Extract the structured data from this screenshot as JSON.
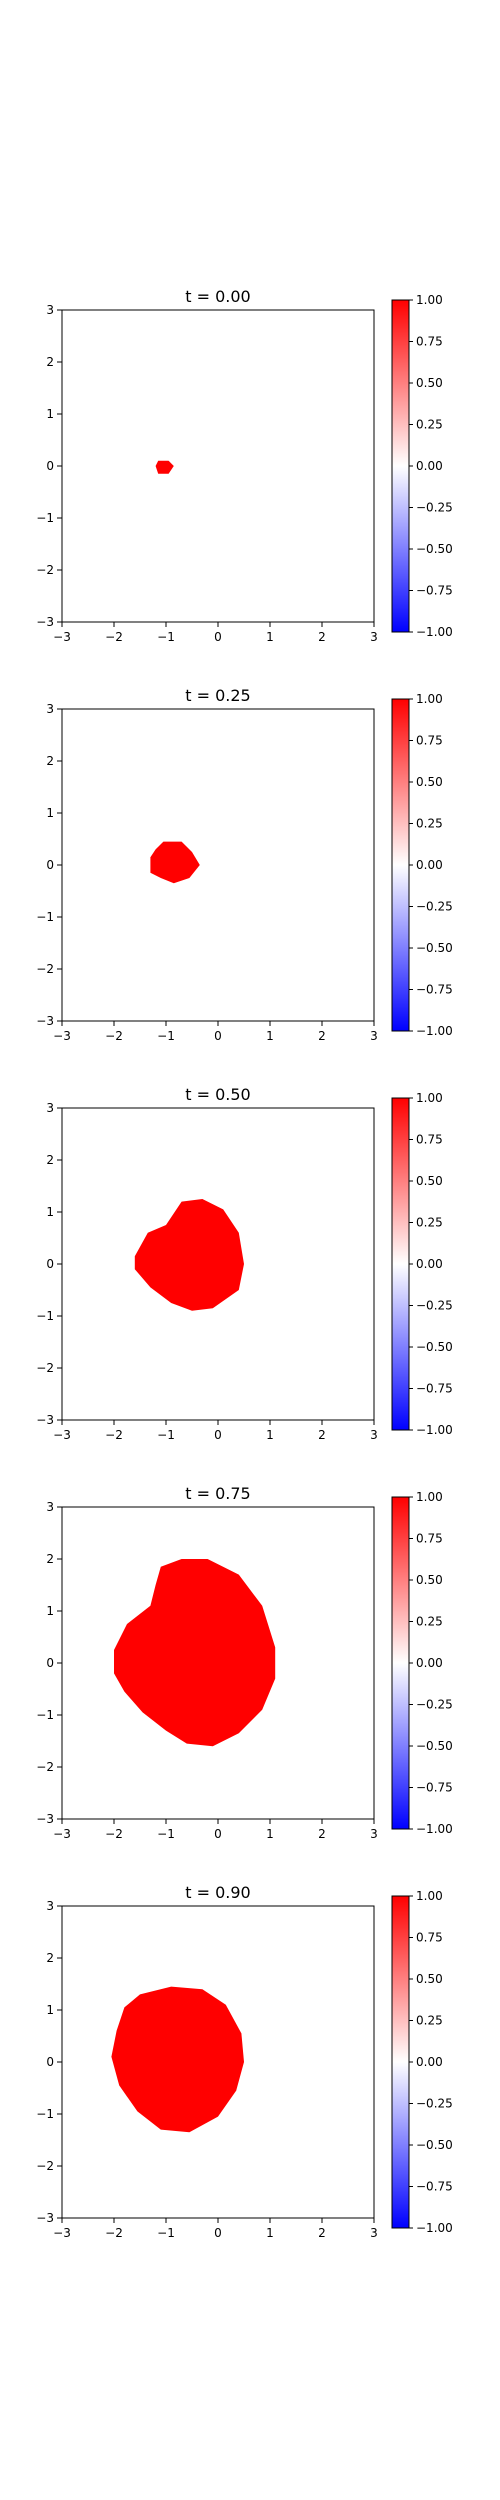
{
  "colors": {
    "fill": "#ff0000",
    "negative": "#0000ff",
    "zero": "#ffffff",
    "axis": "#000000"
  },
  "chart_data": [
    {
      "type": "heatmap",
      "title": "t = 0.00",
      "xlim": [
        -3,
        3
      ],
      "ylim": [
        -3,
        3
      ],
      "xticks": [
        -3,
        -2,
        -1,
        0,
        1,
        2,
        3
      ],
      "yticks": [
        -3,
        -2,
        -1,
        0,
        1,
        2,
        3
      ],
      "colorbar": {
        "vmin": -1.0,
        "vmax": 1.0,
        "ticks": [
          "1.00",
          "0.75",
          "0.50",
          "0.25",
          "0.00",
          "−0.25",
          "−0.50",
          "−0.75",
          "−1.00"
        ]
      },
      "region": {
        "value": 1.0,
        "outline": [
          [
            -1.15,
            0.1
          ],
          [
            -0.95,
            0.1
          ],
          [
            -0.85,
            0.0
          ],
          [
            -0.95,
            -0.15
          ],
          [
            -1.15,
            -0.15
          ],
          [
            -1.2,
            0.0
          ]
        ]
      }
    },
    {
      "type": "heatmap",
      "title": "t = 0.25",
      "xlim": [
        -3,
        3
      ],
      "ylim": [
        -3,
        3
      ],
      "xticks": [
        -3,
        -2,
        -1,
        0,
        1,
        2,
        3
      ],
      "yticks": [
        -3,
        -2,
        -1,
        0,
        1,
        2,
        3
      ],
      "colorbar": {
        "vmin": -1.0,
        "vmax": 1.0,
        "ticks": [
          "1.00",
          "0.75",
          "0.50",
          "0.25",
          "0.00",
          "−0.25",
          "−0.50",
          "−0.75",
          "−1.00"
        ]
      },
      "region": {
        "value": 1.0,
        "outline": [
          [
            -1.05,
            0.45
          ],
          [
            -0.7,
            0.45
          ],
          [
            -0.5,
            0.25
          ],
          [
            -0.35,
            0.0
          ],
          [
            -0.55,
            -0.25
          ],
          [
            -0.85,
            -0.35
          ],
          [
            -1.1,
            -0.25
          ],
          [
            -1.3,
            -0.15
          ],
          [
            -1.3,
            0.15
          ],
          [
            -1.2,
            0.3
          ]
        ]
      }
    },
    {
      "type": "heatmap",
      "title": "t = 0.50",
      "xlim": [
        -3,
        3
      ],
      "ylim": [
        -3,
        3
      ],
      "xticks": [
        -3,
        -2,
        -1,
        0,
        1,
        2,
        3
      ],
      "yticks": [
        -3,
        -2,
        -1,
        0,
        1,
        2,
        3
      ],
      "colorbar": {
        "vmin": -1.0,
        "vmax": 1.0,
        "ticks": [
          "1.00",
          "0.75",
          "0.50",
          "0.25",
          "0.00",
          "−0.25",
          "−0.50",
          "−0.75",
          "−1.00"
        ]
      },
      "region": {
        "value": 1.0,
        "outline": [
          [
            -0.7,
            1.2
          ],
          [
            -0.3,
            1.25
          ],
          [
            0.1,
            1.05
          ],
          [
            0.4,
            0.6
          ],
          [
            0.5,
            0.0
          ],
          [
            0.4,
            -0.5
          ],
          [
            -0.1,
            -0.85
          ],
          [
            -0.5,
            -0.9
          ],
          [
            -0.9,
            -0.75
          ],
          [
            -1.3,
            -0.45
          ],
          [
            -1.6,
            -0.1
          ],
          [
            -1.6,
            0.15
          ],
          [
            -1.35,
            0.6
          ],
          [
            -1.0,
            0.75
          ]
        ]
      }
    },
    {
      "type": "heatmap",
      "title": "t = 0.75",
      "xlim": [
        -3,
        3
      ],
      "ylim": [
        -3,
        3
      ],
      "xticks": [
        -3,
        -2,
        -1,
        0,
        1,
        2,
        3
      ],
      "yticks": [
        -3,
        -2,
        -1,
        0,
        1,
        2,
        3
      ],
      "colorbar": {
        "vmin": -1.0,
        "vmax": 1.0,
        "ticks": [
          "1.00",
          "0.75",
          "0.50",
          "0.25",
          "0.00",
          "−0.25",
          "−0.50",
          "−0.75",
          "−1.00"
        ]
      },
      "region": {
        "value": 1.0,
        "outline": [
          [
            -1.1,
            1.85
          ],
          [
            -0.7,
            2.0
          ],
          [
            -0.2,
            2.0
          ],
          [
            0.4,
            1.7
          ],
          [
            0.85,
            1.1
          ],
          [
            1.1,
            0.3
          ],
          [
            1.1,
            -0.3
          ],
          [
            0.85,
            -0.9
          ],
          [
            0.4,
            -1.35
          ],
          [
            -0.1,
            -1.6
          ],
          [
            -0.6,
            -1.55
          ],
          [
            -1.0,
            -1.3
          ],
          [
            -1.45,
            -0.95
          ],
          [
            -1.8,
            -0.55
          ],
          [
            -2.0,
            -0.2
          ],
          [
            -2.0,
            0.25
          ],
          [
            -1.75,
            0.75
          ],
          [
            -1.3,
            1.1
          ],
          [
            -1.2,
            1.5
          ]
        ]
      }
    },
    {
      "type": "heatmap",
      "title": "t = 0.90",
      "xlim": [
        -3,
        3
      ],
      "ylim": [
        -3,
        3
      ],
      "xticks": [
        -3,
        -2,
        -1,
        0,
        1,
        2,
        3
      ],
      "yticks": [
        -3,
        -2,
        -1,
        0,
        1,
        2,
        3
      ],
      "colorbar": {
        "vmin": -1.0,
        "vmax": 1.0,
        "ticks": [
          "1.00",
          "0.75",
          "0.50",
          "0.25",
          "0.00",
          "−0.25",
          "−0.50",
          "−0.75",
          "−1.00"
        ]
      },
      "region": {
        "value": 1.0,
        "outline": [
          [
            -1.5,
            1.3
          ],
          [
            -0.9,
            1.45
          ],
          [
            -0.3,
            1.4
          ],
          [
            0.15,
            1.1
          ],
          [
            0.45,
            0.55
          ],
          [
            0.5,
            0.0
          ],
          [
            0.35,
            -0.55
          ],
          [
            0.0,
            -1.05
          ],
          [
            -0.55,
            -1.35
          ],
          [
            -1.1,
            -1.3
          ],
          [
            -1.55,
            -0.95
          ],
          [
            -1.9,
            -0.45
          ],
          [
            -2.05,
            0.1
          ],
          [
            -1.95,
            0.6
          ],
          [
            -1.8,
            1.05
          ]
        ]
      }
    }
  ]
}
